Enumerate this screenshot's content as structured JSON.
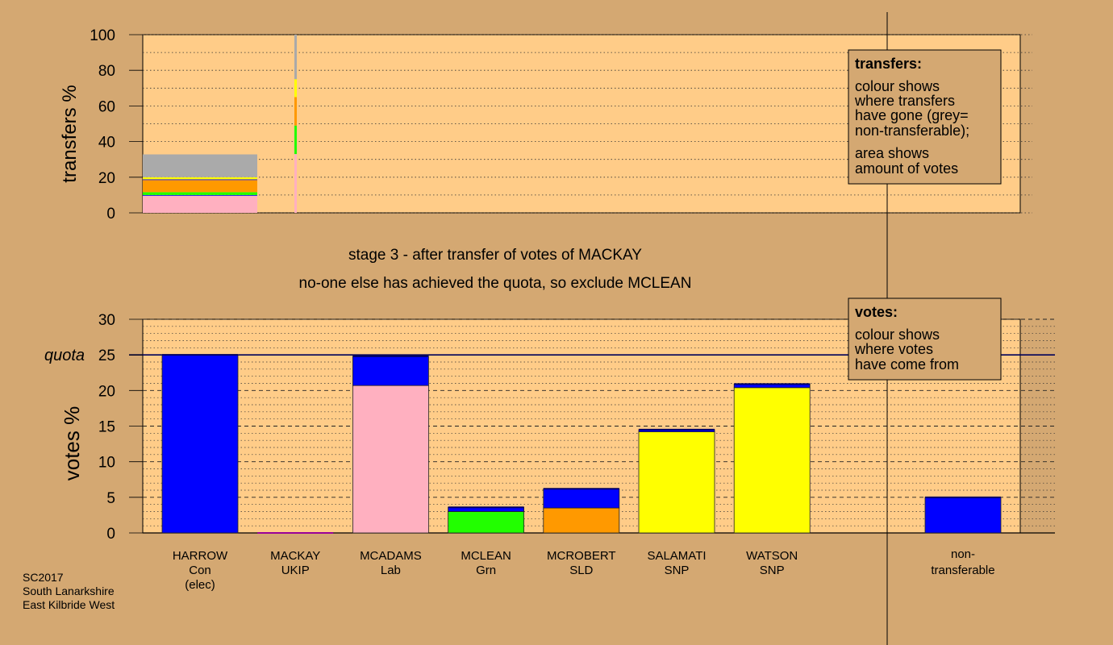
{
  "colors": {
    "background": "#d4a872",
    "plot_area": "#ffcc88",
    "legend_box": "#d4a872",
    "Con": "#0000ff",
    "Lab": "#ffb0c0",
    "Grn": "#22ff00",
    "SLD": "#ff9900",
    "SNP": "#ffff00",
    "UKIP": "#990099",
    "nontransferable": "#aaaaaa",
    "quota_line": "#00005a"
  },
  "chart_data": [
    {
      "type": "bar",
      "stacked": true,
      "panel": "transfers",
      "ylabel": "transfers %",
      "ylim": [
        0,
        100
      ],
      "yticks": [
        0,
        20,
        40,
        60,
        80,
        100
      ],
      "grid": true,
      "bars": [
        {
          "label": "",
          "width_weight": 32.8,
          "segments": [
            {
              "party": "Lab",
              "value": 9.6
            },
            {
              "party": "Con",
              "value": 0.4
            },
            {
              "party": "Grn",
              "value": 1.6
            },
            {
              "party": "SLD",
              "value": 6.8
            },
            {
              "party": "Con",
              "value": 0.4
            },
            {
              "party": "SNP",
              "value": 1.2
            },
            {
              "party": "nontransferable",
              "value": 12.8
            }
          ]
        },
        {
          "label": "",
          "width_weight": 1,
          "segments": [
            {
              "party": "Lab",
              "value": 33
            },
            {
              "party": "Grn",
              "value": 16
            },
            {
              "party": "SLD",
              "value": 16
            },
            {
              "party": "SNP",
              "value": 10
            },
            {
              "party": "nontransferable",
              "value": 25
            }
          ]
        }
      ]
    },
    {
      "type": "bar",
      "stacked": true,
      "panel": "votes",
      "ylabel": "votes %",
      "ylim": [
        0,
        30
      ],
      "yticks": [
        0,
        5,
        10,
        15,
        20,
        25,
        30
      ],
      "quota": 25,
      "quota_label": "quota",
      "grid": true,
      "categories": [
        {
          "name": "HARROW",
          "party": "Con",
          "note": "(elec)",
          "segments": [
            {
              "party": "Con",
              "value": 25.0
            }
          ]
        },
        {
          "name": "MACKAY",
          "party": "UKIP",
          "note": "",
          "segments": []
        },
        {
          "name": "MCADAMS",
          "party": "Lab",
          "note": "",
          "segments": [
            {
              "party": "Lab",
              "value": 20.7
            },
            {
              "party": "Con",
              "value": 4.1
            }
          ]
        },
        {
          "name": "MCLEAN",
          "party": "Grn",
          "note": "",
          "segments": [
            {
              "party": "Grn",
              "value": 3.0
            },
            {
              "party": "Con",
              "value": 0.6
            }
          ]
        },
        {
          "name": "MCROBERT",
          "party": "SLD",
          "note": "",
          "segments": [
            {
              "party": "SLD",
              "value": 3.5
            },
            {
              "party": "Con",
              "value": 2.7
            }
          ]
        },
        {
          "name": "SALAMATI",
          "party": "SNP",
          "note": "",
          "segments": [
            {
              "party": "SNP",
              "value": 14.2
            },
            {
              "party": "Con",
              "value": 0.3
            }
          ]
        },
        {
          "name": "WATSON",
          "party": "SNP",
          "note": "",
          "segments": [
            {
              "party": "SNP",
              "value": 20.4
            },
            {
              "party": "Con",
              "value": 0.5
            }
          ]
        }
      ],
      "nontransferable": {
        "label_line1": "non-",
        "label_line2": "transferable",
        "segments": [
          {
            "party": "Con",
            "value": 5.0
          }
        ]
      }
    }
  ],
  "titles": {
    "line1": "stage 3 - after transfer of votes of MACKAY",
    "line2": "no-one else has achieved the quota, so exclude MCLEAN"
  },
  "legend_transfers": {
    "heading": "transfers:",
    "lines": [
      "colour shows",
      "where transfers",
      "have gone (grey=",
      "non-transferable);"
    ],
    "lines2": [
      "area shows",
      "amount of votes"
    ]
  },
  "legend_votes": {
    "heading": "votes:",
    "lines": [
      "colour shows",
      "where votes",
      "have come from"
    ]
  },
  "footer": {
    "line1": "SC2017",
    "line2": "South Lanarkshire",
    "line3": "East Kilbride West"
  }
}
